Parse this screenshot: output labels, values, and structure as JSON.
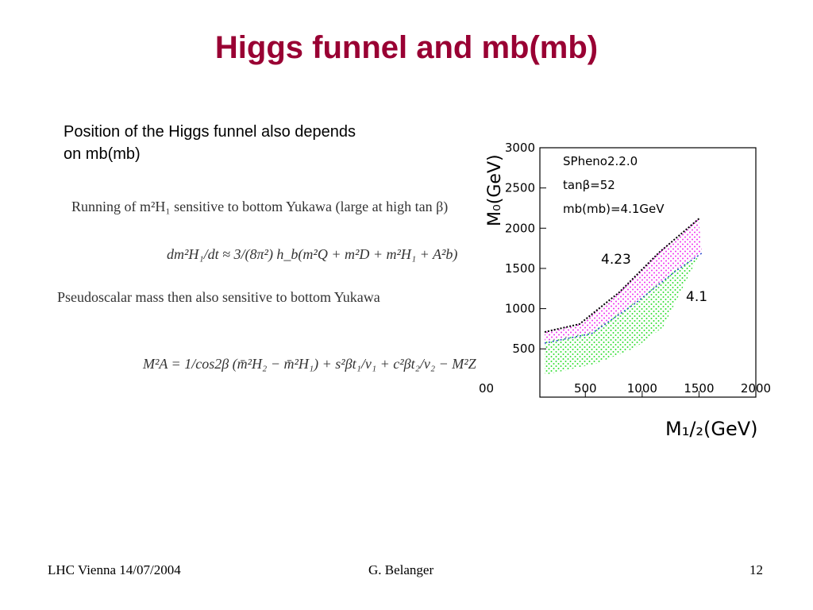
{
  "header": {
    "title": "Higgs funnel and mb(mb)"
  },
  "body": {
    "text": "Position of the Higgs funnel also depends on mb(mb)",
    "equations": [
      "Running of m²H₁ sensitive to bottom Yukawa (large at high tan β)",
      "dm²H₁/dt ≈ 3/(8π²) h_b(m²Q + m²D + m²H₁ + A²b)",
      "Pseudoscalar mass then also sensitive to bottom Yukawa",
      "M²A = 1/cos2β (m̄²H₂ − m̄²H₁) + s²βt₁/v₁ + c²βt₂/v₂ − M²Z"
    ]
  },
  "plot": {
    "xlabel": "M₁/₂(GeV)",
    "ylabel": "M₀(GeV)",
    "xlim": [
      100,
      2000
    ],
    "ylim": [
      -100,
      3000
    ],
    "xticks": [
      500,
      1000,
      1500,
      2000
    ],
    "yticks": [
      500,
      1000,
      1500,
      2000,
      2500,
      3000
    ],
    "clipped_label": "00",
    "legend": [
      "SPheno2.2.0",
      "tanβ=52",
      "mb(mb)=4.1GeV"
    ],
    "annotations": [
      "4.23",
      "4.1"
    ]
  },
  "footer": {
    "left": "LHC Vienna 14/07/2004",
    "center": "G. Belanger",
    "right": "12"
  }
}
